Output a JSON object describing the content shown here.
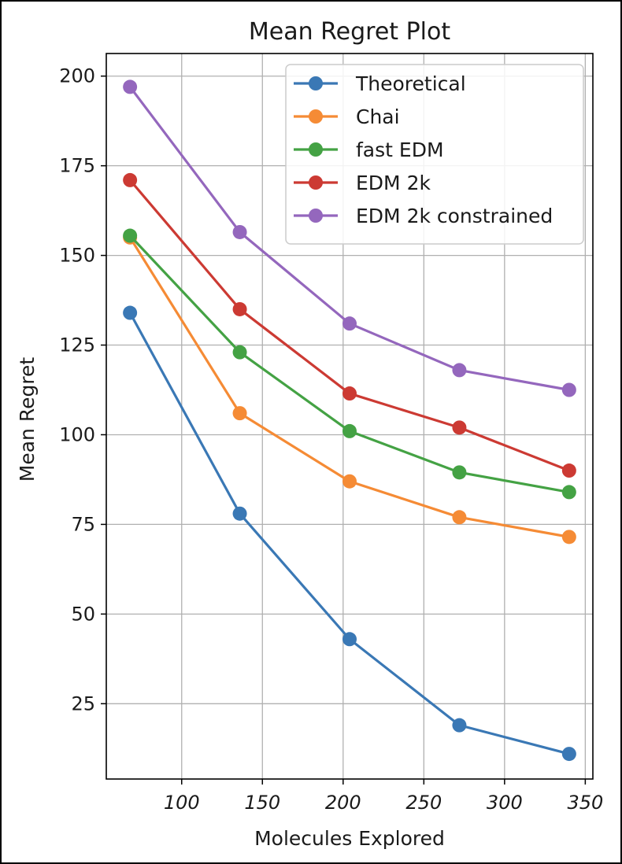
{
  "chart_data": {
    "type": "line",
    "title": "Mean Regret Plot",
    "xlabel": "Molecules Explored",
    "ylabel": "Mean Regret",
    "x": [
      68,
      136,
      204,
      272,
      340
    ],
    "xlim": [
      53.3,
      354.7
    ],
    "ylim": [
      4.0,
      206.3
    ],
    "xticks": [
      100,
      150,
      200,
      250,
      300,
      350
    ],
    "yticks": [
      25,
      50,
      75,
      100,
      125,
      150,
      175,
      200
    ],
    "grid": true,
    "legend_position": "top-right",
    "series": [
      {
        "name": "Theoretical",
        "color": "#3a78b5",
        "values": [
          134,
          78,
          43,
          19,
          11
        ]
      },
      {
        "name": "Chai",
        "color": "#f58b35",
        "values": [
          155,
          106,
          87,
          77,
          71.5
        ]
      },
      {
        "name": "fast EDM",
        "color": "#44a244",
        "values": [
          155.5,
          123,
          101,
          89.5,
          84
        ]
      },
      {
        "name": "EDM 2k",
        "color": "#cc3a33",
        "values": [
          171,
          135,
          111.5,
          102,
          90
        ]
      },
      {
        "name": "EDM 2k constrained",
        "color": "#9467bd",
        "values": [
          197,
          156.5,
          131,
          118,
          112.5
        ]
      }
    ]
  }
}
